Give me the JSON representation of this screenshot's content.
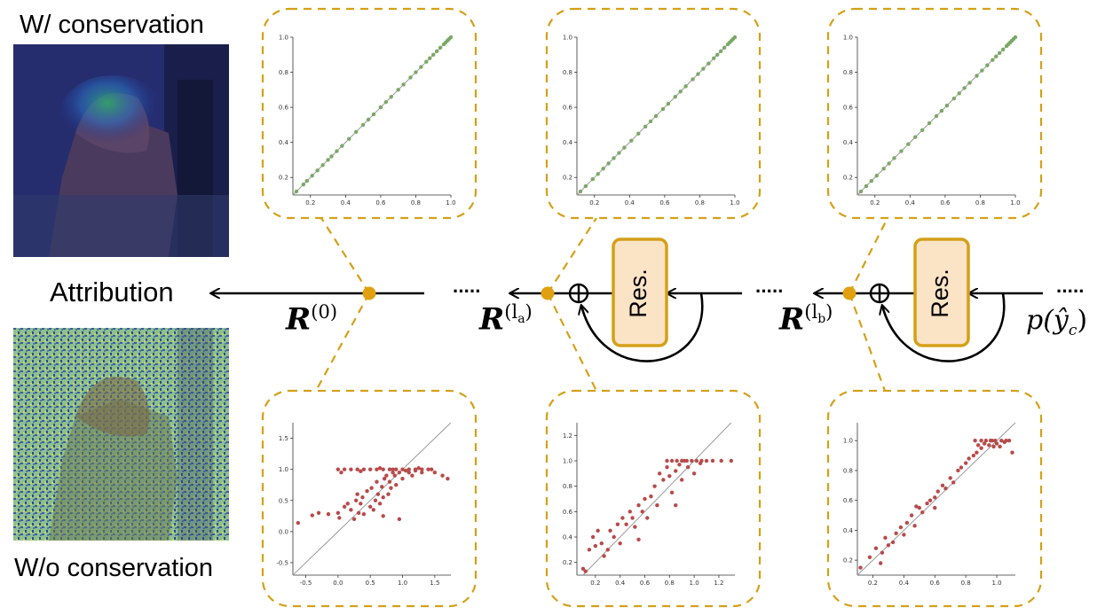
{
  "labels": {
    "with_conservation": "W/ conservation",
    "without_conservation": "W/o conservation",
    "attribution": "Attribution"
  },
  "ellipsis": "·····",
  "relevance": [
    {
      "base": "R",
      "sup": "(0)"
    },
    {
      "base": "R",
      "sup": "(l",
      "sub": "a",
      "close": ")"
    },
    {
      "base": "R",
      "sup": "(l",
      "sub": "b",
      "close": ")"
    }
  ],
  "output_label": {
    "pre": "p(",
    "var": "ŷ",
    "sub": "c",
    "post": ")"
  },
  "res_block_label": "Res.",
  "colors": {
    "dashed_box": "#d4a017",
    "node": "#e0a010",
    "res_fill": "#fbe3c6",
    "res_border": "#d4a017",
    "scatter_green": "#7aa865",
    "scatter_red": "#b84a4a",
    "diagonal": "#9a9a9a"
  },
  "chart_data": [
    {
      "type": "scatter",
      "position": "top-left",
      "series_color": "green",
      "xlim": [
        0.1,
        1.0
      ],
      "ylim": [
        0.1,
        1.0
      ],
      "xticks": [
        "0.2",
        "0.4",
        "0.6",
        "0.8",
        "1.0"
      ],
      "yticks": [
        "0.2",
        "0.4",
        "0.6",
        "0.8",
        "1.0"
      ],
      "points": [
        [
          0.12,
          0.12
        ],
        [
          0.16,
          0.16
        ],
        [
          0.18,
          0.18
        ],
        [
          0.21,
          0.21
        ],
        [
          0.24,
          0.24
        ],
        [
          0.27,
          0.27
        ],
        [
          0.3,
          0.3
        ],
        [
          0.32,
          0.32
        ],
        [
          0.35,
          0.35
        ],
        [
          0.38,
          0.38
        ],
        [
          0.42,
          0.42
        ],
        [
          0.46,
          0.46
        ],
        [
          0.5,
          0.5
        ],
        [
          0.53,
          0.53
        ],
        [
          0.56,
          0.56
        ],
        [
          0.6,
          0.6
        ],
        [
          0.63,
          0.63
        ],
        [
          0.66,
          0.66
        ],
        [
          0.7,
          0.7
        ],
        [
          0.73,
          0.73
        ],
        [
          0.77,
          0.77
        ],
        [
          0.8,
          0.8
        ],
        [
          0.83,
          0.83
        ],
        [
          0.86,
          0.86
        ],
        [
          0.88,
          0.88
        ],
        [
          0.9,
          0.9
        ],
        [
          0.92,
          0.92
        ],
        [
          0.94,
          0.94
        ],
        [
          0.96,
          0.96
        ],
        [
          0.97,
          0.97
        ],
        [
          0.98,
          0.98
        ],
        [
          0.99,
          0.99
        ],
        [
          1.0,
          1.0
        ]
      ]
    },
    {
      "type": "scatter",
      "position": "top-middle",
      "series_color": "green",
      "xlim": [
        0.1,
        1.0
      ],
      "ylim": [
        0.1,
        1.0
      ],
      "xticks": [
        "0.2",
        "0.4",
        "0.6",
        "0.8",
        "1.0"
      ],
      "yticks": [
        "0.2",
        "0.4",
        "0.6",
        "0.8",
        "1.0"
      ],
      "points": [
        [
          0.12,
          0.12
        ],
        [
          0.15,
          0.15
        ],
        [
          0.19,
          0.19
        ],
        [
          0.22,
          0.22
        ],
        [
          0.25,
          0.25
        ],
        [
          0.28,
          0.28
        ],
        [
          0.31,
          0.31
        ],
        [
          0.34,
          0.34
        ],
        [
          0.37,
          0.37
        ],
        [
          0.41,
          0.41
        ],
        [
          0.45,
          0.45
        ],
        [
          0.49,
          0.49
        ],
        [
          0.52,
          0.52
        ],
        [
          0.55,
          0.55
        ],
        [
          0.59,
          0.59
        ],
        [
          0.62,
          0.62
        ],
        [
          0.66,
          0.66
        ],
        [
          0.69,
          0.69
        ],
        [
          0.72,
          0.72
        ],
        [
          0.76,
          0.76
        ],
        [
          0.79,
          0.79
        ],
        [
          0.82,
          0.82
        ],
        [
          0.85,
          0.85
        ],
        [
          0.88,
          0.88
        ],
        [
          0.9,
          0.9
        ],
        [
          0.92,
          0.92
        ],
        [
          0.94,
          0.94
        ],
        [
          0.96,
          0.96
        ],
        [
          0.97,
          0.97
        ],
        [
          0.98,
          0.98
        ],
        [
          0.99,
          0.99
        ],
        [
          1.0,
          1.0
        ]
      ]
    },
    {
      "type": "scatter",
      "position": "top-right",
      "series_color": "green",
      "xlim": [
        0.1,
        1.0
      ],
      "ylim": [
        0.1,
        1.0
      ],
      "xticks": [
        "0.2",
        "0.4",
        "0.6",
        "0.8",
        "1.0"
      ],
      "yticks": [
        "0.2",
        "0.4",
        "0.6",
        "0.8",
        "1.0"
      ],
      "points": [
        [
          0.12,
          0.12
        ],
        [
          0.15,
          0.15
        ],
        [
          0.18,
          0.18
        ],
        [
          0.21,
          0.21
        ],
        [
          0.25,
          0.25
        ],
        [
          0.28,
          0.28
        ],
        [
          0.31,
          0.31
        ],
        [
          0.35,
          0.35
        ],
        [
          0.39,
          0.39
        ],
        [
          0.43,
          0.43
        ],
        [
          0.47,
          0.47
        ],
        [
          0.51,
          0.51
        ],
        [
          0.55,
          0.55
        ],
        [
          0.58,
          0.58
        ],
        [
          0.61,
          0.61
        ],
        [
          0.65,
          0.65
        ],
        [
          0.68,
          0.68
        ],
        [
          0.71,
          0.71
        ],
        [
          0.74,
          0.74
        ],
        [
          0.78,
          0.78
        ],
        [
          0.81,
          0.81
        ],
        [
          0.84,
          0.84
        ],
        [
          0.87,
          0.87
        ],
        [
          0.89,
          0.89
        ],
        [
          0.91,
          0.91
        ],
        [
          0.93,
          0.93
        ],
        [
          0.95,
          0.95
        ],
        [
          0.96,
          0.96
        ],
        [
          0.97,
          0.97
        ],
        [
          0.98,
          0.98
        ],
        [
          0.99,
          0.99
        ],
        [
          1.0,
          1.0
        ]
      ]
    },
    {
      "type": "scatter",
      "position": "bottom-left",
      "series_color": "red",
      "xlim": [
        -0.7,
        1.75
      ],
      "ylim": [
        -0.7,
        1.75
      ],
      "xticks": [
        "-0.5",
        "0.0",
        "0.5",
        "1.0",
        "1.5"
      ],
      "yticks": [
        "-0.5",
        "0.0",
        "0.5",
        "1.0",
        "1.5"
      ],
      "points": [
        [
          -0.62,
          0.14
        ],
        [
          -0.4,
          0.26
        ],
        [
          -0.3,
          0.3
        ],
        [
          -0.15,
          0.28
        ],
        [
          0.0,
          0.3
        ],
        [
          0.02,
          0.22
        ],
        [
          0.1,
          0.4
        ],
        [
          0.15,
          0.45
        ],
        [
          0.2,
          0.35
        ],
        [
          0.25,
          0.2
        ],
        [
          0.28,
          0.5
        ],
        [
          0.3,
          0.6
        ],
        [
          0.32,
          0.3
        ],
        [
          0.35,
          0.45
        ],
        [
          0.38,
          0.55
        ],
        [
          0.4,
          0.28
        ],
        [
          0.45,
          0.65
        ],
        [
          0.5,
          0.4
        ],
        [
          0.52,
          0.7
        ],
        [
          0.55,
          0.35
        ],
        [
          0.58,
          0.5
        ],
        [
          0.6,
          0.8
        ],
        [
          0.62,
          0.6
        ],
        [
          0.65,
          0.45
        ],
        [
          0.68,
          0.72
        ],
        [
          0.7,
          0.55
        ],
        [
          0.72,
          0.85
        ],
        [
          0.75,
          0.9
        ],
        [
          0.78,
          0.6
        ],
        [
          0.8,
          0.8
        ],
        [
          0.82,
          0.7
        ],
        [
          0.85,
          0.95
        ],
        [
          0.88,
          0.9
        ],
        [
          0.9,
          0.75
        ],
        [
          0.95,
          0.95
        ],
        [
          1.0,
          0.85
        ],
        [
          1.05,
          0.98
        ],
        [
          1.1,
          0.95
        ],
        [
          1.15,
          0.9
        ],
        [
          1.2,
          0.98
        ],
        [
          0.95,
          0.2
        ],
        [
          0.7,
          0.25
        ],
        [
          1.3,
          0.95
        ],
        [
          1.4,
          1.0
        ],
        [
          1.5,
          0.95
        ],
        [
          1.62,
          0.9
        ],
        [
          1.7,
          0.85
        ],
        [
          0.0,
          1.0
        ],
        [
          0.1,
          1.0
        ],
        [
          0.2,
          1.0
        ],
        [
          0.3,
          1.0
        ],
        [
          0.4,
          1.0
        ],
        [
          0.5,
          1.0
        ],
        [
          0.6,
          1.0
        ],
        [
          0.7,
          1.0
        ],
        [
          0.8,
          1.0
        ],
        [
          0.9,
          1.0
        ],
        [
          1.0,
          1.0
        ],
        [
          1.1,
          1.0
        ],
        [
          1.2,
          1.0
        ],
        [
          1.3,
          1.0
        ],
        [
          1.45,
          1.0
        ],
        [
          0.05,
          0.95
        ],
        [
          0.35,
          0.97
        ],
        [
          0.65,
          1.02
        ],
        [
          0.85,
          1.0
        ],
        [
          1.25,
          1.02
        ]
      ]
    },
    {
      "type": "scatter",
      "position": "bottom-middle",
      "series_color": "red",
      "xlim": [
        0.05,
        1.33
      ],
      "ylim": [
        0.1,
        1.3
      ],
      "xticks": [
        "0.2",
        "0.4",
        "0.6",
        "0.8",
        "1.0",
        "1.2"
      ],
      "yticks": [
        "0.2",
        "0.4",
        "0.6",
        "0.8",
        "1.0",
        "1.2"
      ],
      "points": [
        [
          0.1,
          0.15
        ],
        [
          0.12,
          0.13
        ],
        [
          0.15,
          0.3
        ],
        [
          0.18,
          0.4
        ],
        [
          0.2,
          0.33
        ],
        [
          0.22,
          0.45
        ],
        [
          0.25,
          0.35
        ],
        [
          0.27,
          0.25
        ],
        [
          0.3,
          0.3
        ],
        [
          0.32,
          0.45
        ],
        [
          0.35,
          0.4
        ],
        [
          0.38,
          0.5
        ],
        [
          0.4,
          0.35
        ],
        [
          0.42,
          0.55
        ],
        [
          0.45,
          0.5
        ],
        [
          0.48,
          0.6
        ],
        [
          0.5,
          0.55
        ],
        [
          0.52,
          0.48
        ],
        [
          0.55,
          0.65
        ],
        [
          0.58,
          0.6
        ],
        [
          0.6,
          0.7
        ],
        [
          0.62,
          0.55
        ],
        [
          0.65,
          0.72
        ],
        [
          0.68,
          0.8
        ],
        [
          0.7,
          0.65
        ],
        [
          0.72,
          0.9
        ],
        [
          0.75,
          0.85
        ],
        [
          0.78,
          0.95
        ],
        [
          0.8,
          0.88
        ],
        [
          0.82,
          0.75
        ],
        [
          0.85,
          0.92
        ],
        [
          0.88,
          0.97
        ],
        [
          0.9,
          0.85
        ],
        [
          0.92,
          1.0
        ],
        [
          0.95,
          0.95
        ],
        [
          1.0,
          0.9
        ],
        [
          1.05,
          0.98
        ],
        [
          0.78,
          1.0
        ],
        [
          0.82,
          1.0
        ],
        [
          0.86,
          1.0
        ],
        [
          0.9,
          1.0
        ],
        [
          0.94,
          1.0
        ],
        [
          0.98,
          1.0
        ],
        [
          1.02,
          1.0
        ],
        [
          1.06,
          1.0
        ],
        [
          1.1,
          1.0
        ],
        [
          1.15,
          1.0
        ],
        [
          1.22,
          1.0
        ],
        [
          1.3,
          1.0
        ],
        [
          0.55,
          0.38
        ],
        [
          0.85,
          0.65
        ]
      ]
    },
    {
      "type": "scatter",
      "position": "bottom-right",
      "series_color": "red",
      "xlim": [
        0.1,
        1.12
      ],
      "ylim": [
        0.1,
        1.12
      ],
      "xticks": [
        "0.2",
        "0.4",
        "0.6",
        "0.8",
        "1.0"
      ],
      "yticks": [
        "0.2",
        "0.4",
        "0.6",
        "0.8",
        "1.0"
      ],
      "points": [
        [
          0.12,
          0.15
        ],
        [
          0.18,
          0.22
        ],
        [
          0.22,
          0.28
        ],
        [
          0.25,
          0.18
        ],
        [
          0.26,
          0.25
        ],
        [
          0.28,
          0.35
        ],
        [
          0.3,
          0.3
        ],
        [
          0.33,
          0.32
        ],
        [
          0.35,
          0.38
        ],
        [
          0.38,
          0.42
        ],
        [
          0.4,
          0.37
        ],
        [
          0.42,
          0.45
        ],
        [
          0.45,
          0.5
        ],
        [
          0.47,
          0.43
        ],
        [
          0.5,
          0.55
        ],
        [
          0.52,
          0.52
        ],
        [
          0.55,
          0.58
        ],
        [
          0.57,
          0.6
        ],
        [
          0.6,
          0.62
        ],
        [
          0.62,
          0.66
        ],
        [
          0.65,
          0.7
        ],
        [
          0.67,
          0.68
        ],
        [
          0.7,
          0.75
        ],
        [
          0.72,
          0.72
        ],
        [
          0.75,
          0.8
        ],
        [
          0.77,
          0.82
        ],
        [
          0.8,
          0.85
        ],
        [
          0.82,
          0.88
        ],
        [
          0.85,
          0.9
        ],
        [
          0.87,
          0.92
        ],
        [
          0.88,
          0.97
        ],
        [
          0.9,
          0.95
        ],
        [
          0.92,
          0.98
        ],
        [
          0.95,
          0.97
        ],
        [
          0.97,
          1.0
        ],
        [
          1.0,
          0.98
        ],
        [
          1.02,
          0.96
        ],
        [
          1.05,
          0.99
        ],
        [
          1.08,
          1.0
        ],
        [
          1.1,
          0.92
        ],
        [
          0.9,
          1.0
        ],
        [
          0.93,
          1.0
        ],
        [
          0.96,
          1.0
        ],
        [
          0.99,
          1.0
        ],
        [
          1.03,
          1.0
        ],
        [
          1.06,
          1.0
        ],
        [
          0.86,
          1.0
        ],
        [
          0.98,
          0.96
        ],
        [
          0.6,
          0.55
        ],
        [
          0.48,
          0.56
        ]
      ]
    }
  ]
}
